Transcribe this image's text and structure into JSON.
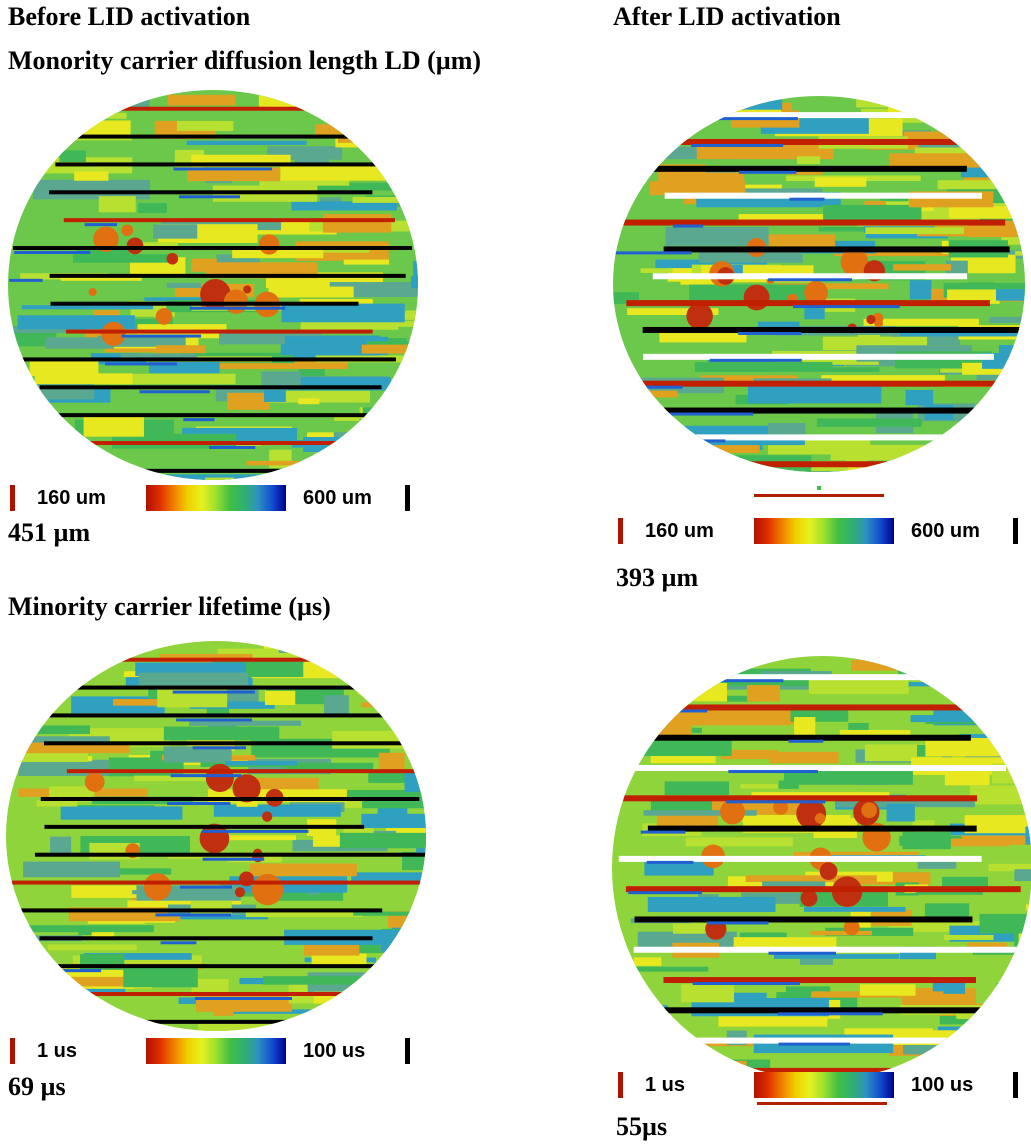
{
  "headers": {
    "before": "Before LID activation",
    "after": "After LID activation"
  },
  "sections": [
    {
      "title": "Monority carrier diffusion length LD (µm)",
      "panels": [
        {
          "scale_min": "160 um",
          "scale_max": "600 um",
          "value": "451 µm"
        },
        {
          "scale_min": "160 um",
          "scale_max": "600 um",
          "value": "393 µm"
        }
      ]
    },
    {
      "title": "Minority carrier lifetime (µs)",
      "panels": [
        {
          "scale_min": "1 us",
          "scale_max": "100 us",
          "value": "69 µs"
        },
        {
          "scale_min": "1 us",
          "scale_max": "100 us",
          "value": "55µs"
        }
      ]
    }
  ]
}
